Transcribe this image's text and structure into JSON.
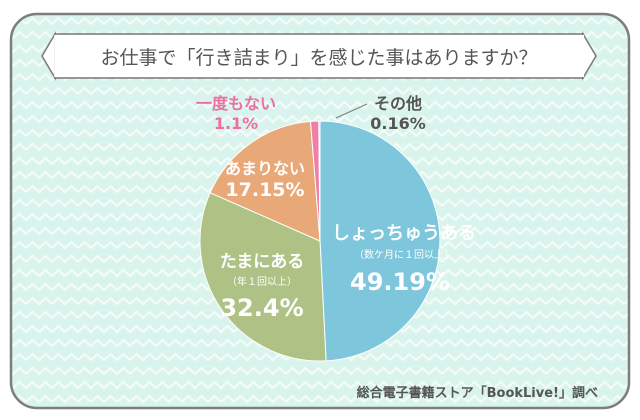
{
  "colors": {
    "background": "#ffffff",
    "panel": "#d8f4ec",
    "zigzag": "#f2fbf8",
    "frame": "#7d7d7d",
    "text_dark": "#555555",
    "pink_text": "#ee6f9c",
    "white_text": "#ffffff"
  },
  "chart_data": {
    "type": "pie",
    "title": "お仕事で「行き詰まり」を感じた事はありますか？",
    "start_angle_deg": 0,
    "direction": "clockwise",
    "slices": [
      {
        "label": "しょっちゅうある",
        "sublabel": "（数ケ月に１回以上）",
        "value": 49.19,
        "value_text": "49.19%",
        "color": "#7ec6dc",
        "text_color": "#ffffff"
      },
      {
        "label": "たまにある",
        "sublabel": "（年１回以上）",
        "value": 32.4,
        "value_text": "32.4%",
        "color": "#adc284",
        "text_color": "#ffffff"
      },
      {
        "label": "あまりない",
        "sublabel": "",
        "value": 17.15,
        "value_text": "17.15%",
        "color": "#e9a878",
        "text_color": "#ffffff"
      },
      {
        "label": "一度もない",
        "sublabel": "",
        "value": 1.1,
        "value_text": "1.1%",
        "color": "#ee7fa6",
        "text_color": "#ee6f9c"
      },
      {
        "label": "その他",
        "sublabel": "",
        "value": 0.16,
        "value_text": "0.16%",
        "color": "#9a9a9a",
        "text_color": "#555555"
      }
    ],
    "source": "総合電子書籍ストア「BookLive!」調べ"
  }
}
